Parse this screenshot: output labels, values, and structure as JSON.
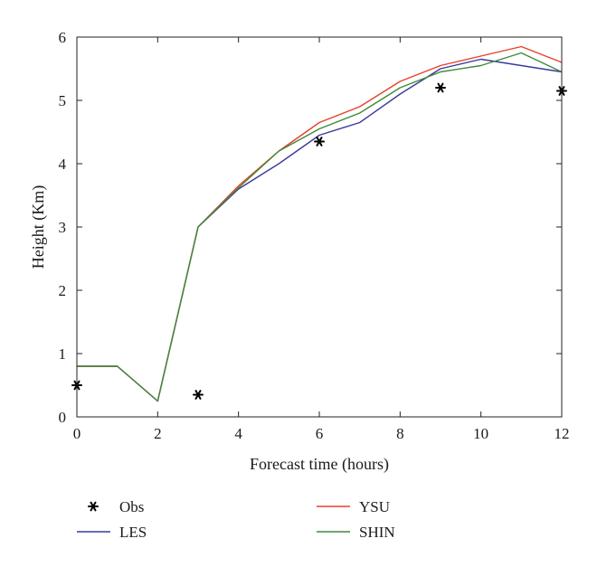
{
  "chart_data": {
    "type": "line",
    "title": "",
    "xlabel": "Forecast time (hours)",
    "ylabel": "Height (Km)",
    "xlim": [
      0,
      12
    ],
    "ylim": [
      0,
      6
    ],
    "xticks": [
      0,
      2,
      4,
      6,
      8,
      10,
      12
    ],
    "yticks": [
      0,
      1,
      2,
      3,
      4,
      5,
      6
    ],
    "grid": false,
    "legend_position": "bottom",
    "series": [
      {
        "name": "LES",
        "type": "line",
        "color": "#3a3a9a",
        "x": [
          0,
          1,
          2,
          3,
          4,
          5,
          6,
          7,
          8,
          9,
          10,
          11,
          12
        ],
        "y": [
          0.8,
          0.8,
          0.25,
          3.0,
          3.6,
          4.0,
          4.45,
          4.65,
          5.1,
          5.5,
          5.65,
          5.55,
          5.45
        ]
      },
      {
        "name": "YSU",
        "type": "line",
        "color": "#e8402a",
        "x": [
          0,
          1,
          2,
          3,
          4,
          5,
          6,
          7,
          8,
          9,
          10,
          11,
          12
        ],
        "y": [
          0.8,
          0.8,
          0.25,
          3.0,
          3.65,
          4.2,
          4.65,
          4.9,
          5.3,
          5.55,
          5.7,
          5.85,
          5.6
        ]
      },
      {
        "name": "SHIN",
        "type": "line",
        "color": "#3f8a3a",
        "x": [
          0,
          1,
          2,
          3,
          4,
          5,
          6,
          7,
          8,
          9,
          10,
          11,
          12
        ],
        "y": [
          0.8,
          0.8,
          0.25,
          3.0,
          3.62,
          4.2,
          4.55,
          4.8,
          5.2,
          5.45,
          5.55,
          5.75,
          5.45
        ]
      },
      {
        "name": "Obs",
        "type": "scatter",
        "marker": "*",
        "color": "#000000",
        "x": [
          0,
          3,
          6,
          9,
          12
        ],
        "y": [
          0.5,
          0.35,
          4.35,
          5.2,
          5.15
        ]
      }
    ]
  }
}
